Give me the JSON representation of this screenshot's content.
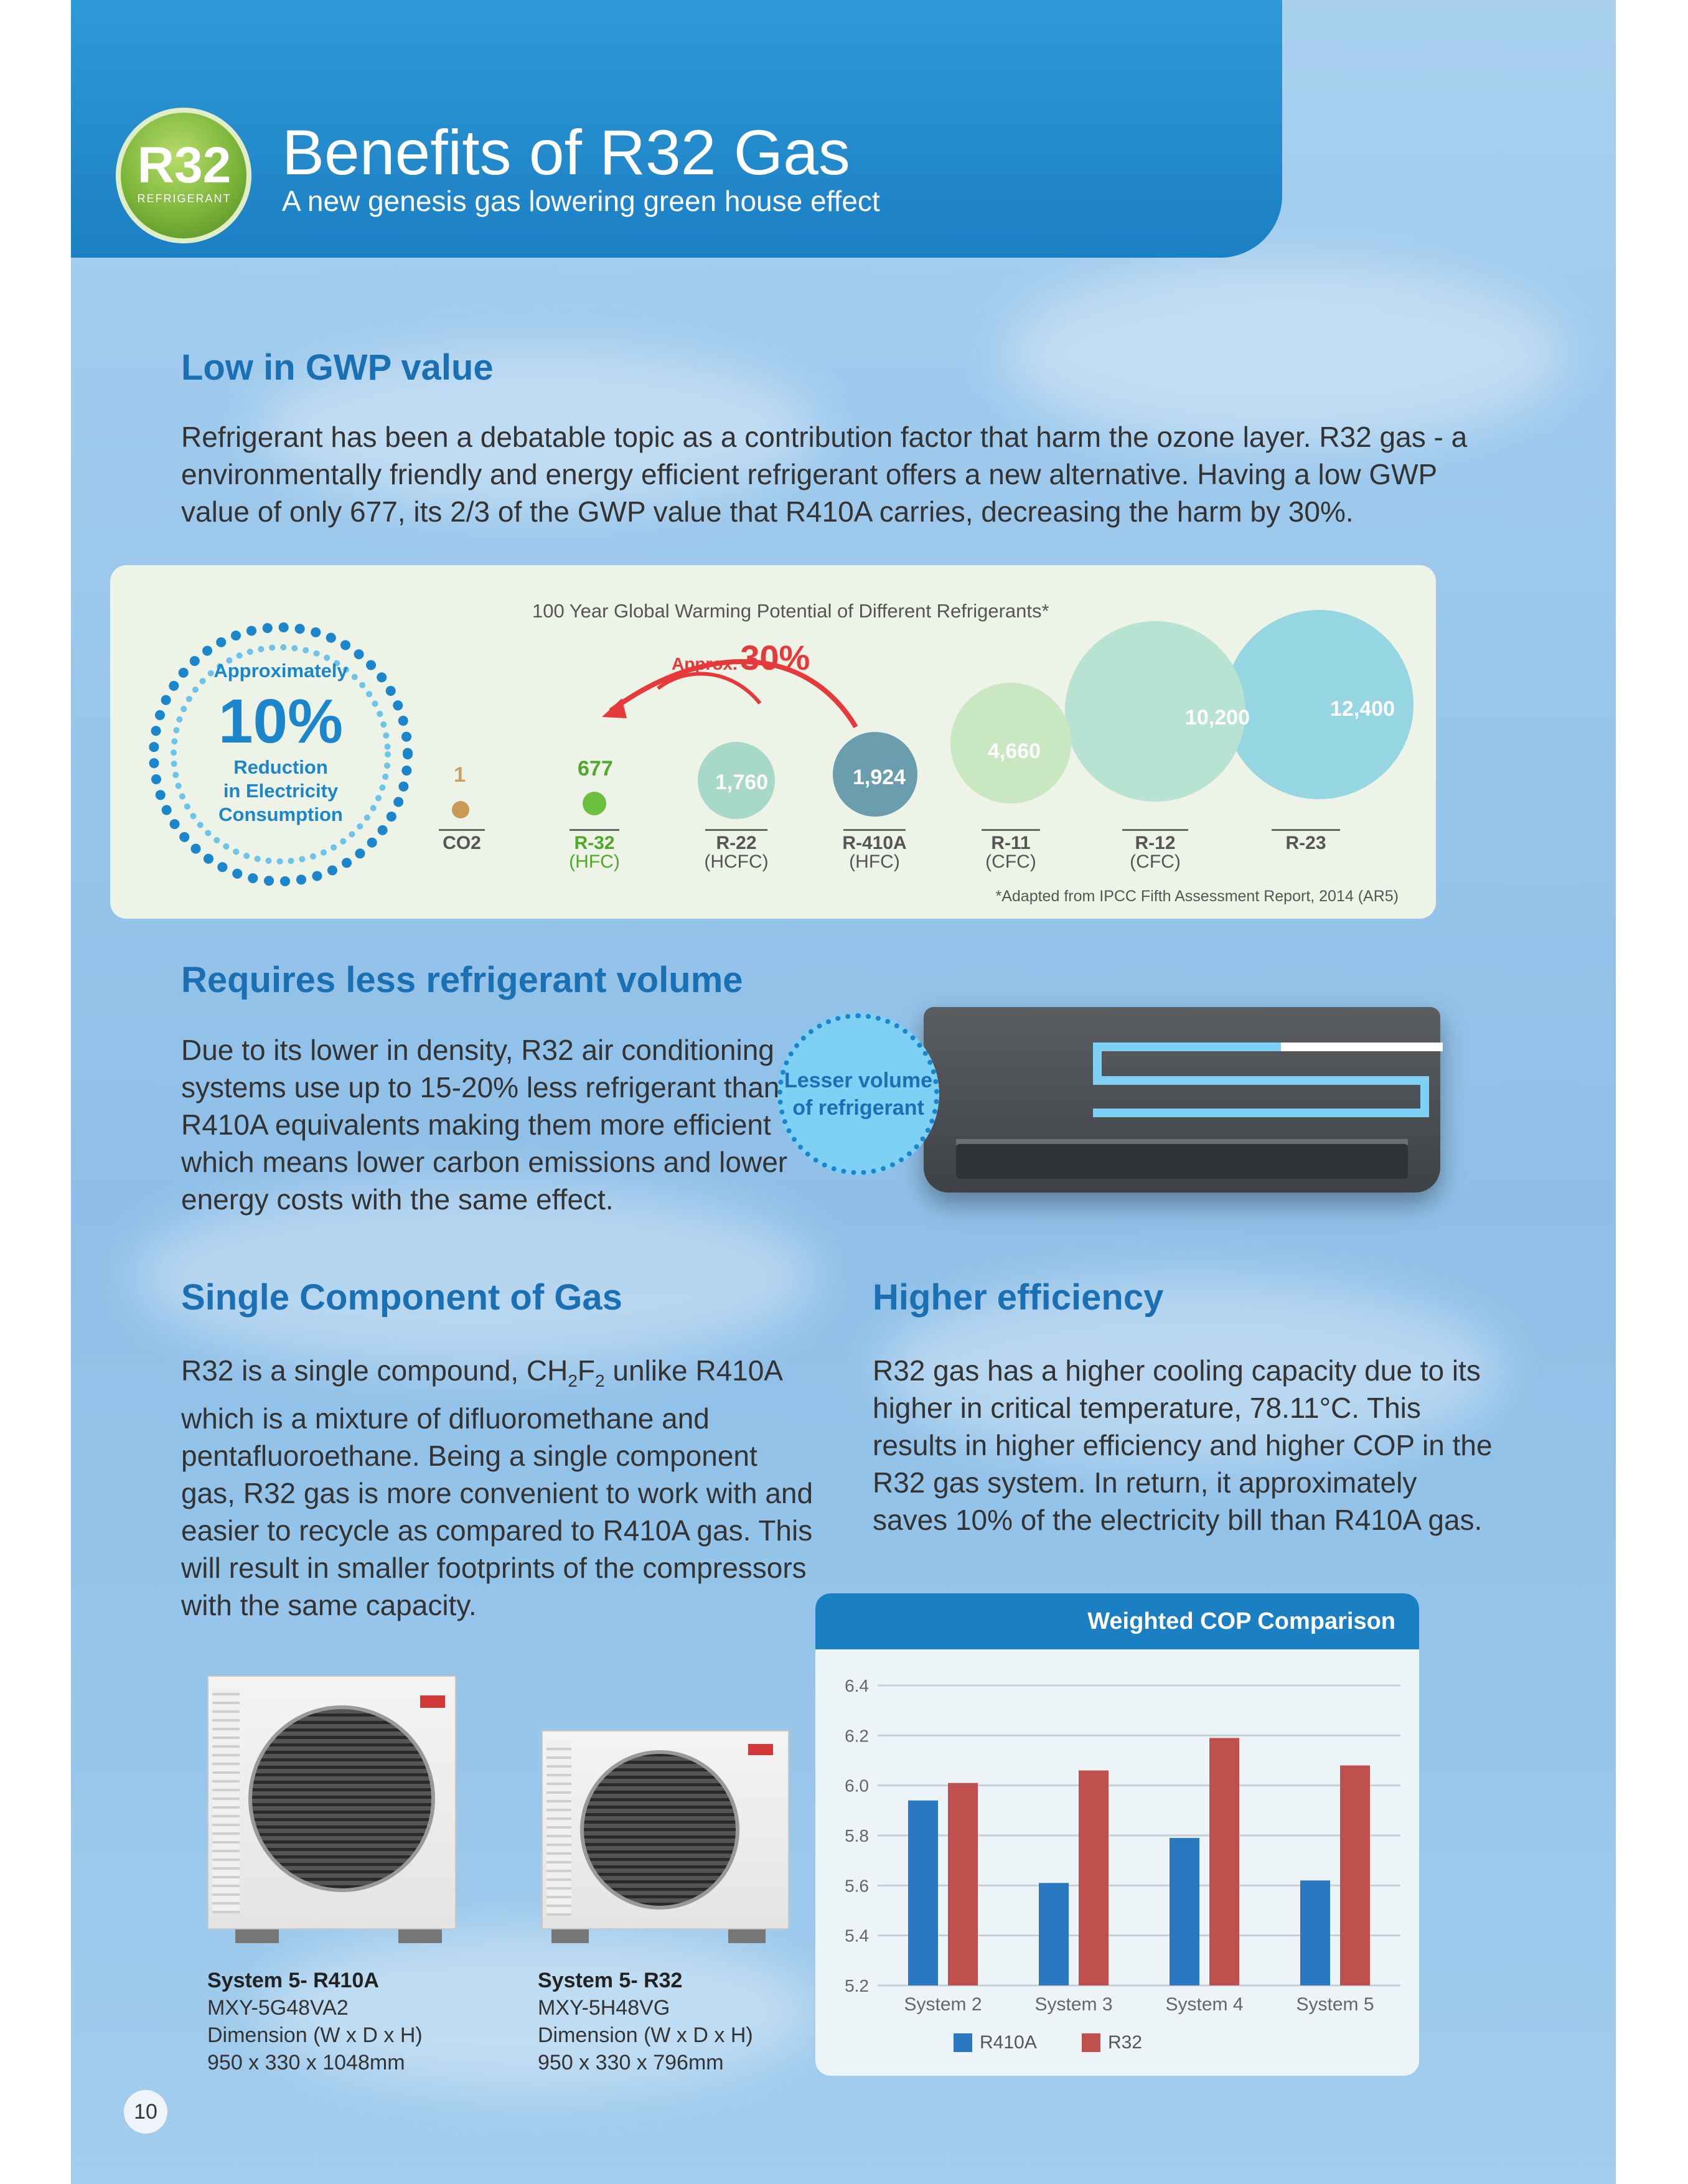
{
  "header": {
    "logo_text": "R32",
    "logo_subtext": "REFRIGERANT",
    "title": "Benefits of R32 Gas",
    "subtitle": "A new genesis gas lowering green house effect"
  },
  "section_gwp": {
    "heading": "Low in GWP value",
    "body": "Refrigerant has been a debatable topic as a contribution factor that harm the ozone layer. R32 gas - a environmentally friendly and energy efficient refrigerant offers a new alternative. Having a low GWP value of only 677, its 2/3 of the GWP value that R410A carries, decreasing the harm by 30%."
  },
  "badge_10": {
    "approximately": "Approximately",
    "value": "10%",
    "line1": "Reduction",
    "line2": "in Electricity",
    "line3": "Consumption"
  },
  "gwp_chart": {
    "title": "100 Year Global Warming Potential of Different Refrigerants*",
    "approx_label": "Approx.",
    "approx_value": "30%",
    "footnote": "*Adapted from IPCC Fifth Assessment Report, 2014 (AR5)",
    "colors": {
      "co2": "#c89a55",
      "r32": "#6cbf3f",
      "hcfc_hfc": "#a8d8c8",
      "r410a": "#6a9dae",
      "cfc_light": "#c9e8c2",
      "cfc_mid": "#b8e2d2",
      "r23": "#96d6e2",
      "arrow": "#e63a3a"
    }
  },
  "chart_data": [
    {
      "type": "bubble",
      "title": "100 Year Global Warming Potential of Different Refrigerants*",
      "categories": [
        "CO2",
        "R-32",
        "R-22",
        "R-410A",
        "R-11",
        "R-12",
        "R-23"
      ],
      "subcategories": [
        "",
        "(HFC)",
        "(HCFC)",
        "(HFC)",
        "(CFC)",
        "(CFC)",
        ""
      ],
      "values": [
        1,
        677,
        1760,
        1924,
        4660,
        10200,
        12400
      ],
      "value_labels": [
        "1",
        "677",
        "1,760",
        "1,924",
        "4,660",
        "10,200",
        "12,400"
      ],
      "annotation": "Approx. 30%"
    },
    {
      "type": "bar",
      "title": "Weighted COP Comparison",
      "categories": [
        "System 2",
        "System 3",
        "System 4",
        "System 5"
      ],
      "series": [
        {
          "name": "R410A",
          "color": "#2b78c2",
          "values": [
            5.94,
            5.61,
            5.79,
            5.62
          ]
        },
        {
          "name": "R32",
          "color": "#c0504d",
          "values": [
            6.01,
            6.06,
            6.19,
            6.08
          ]
        }
      ],
      "yticks": [
        "6.4",
        "6.2",
        "6.0",
        "5.8",
        "5.6",
        "5.4",
        "5.2"
      ],
      "ylim": [
        5.2,
        6.4
      ]
    }
  ],
  "section_volume": {
    "heading": "Requires less refrigerant volume",
    "body": "Due to its lower in density, R32 air conditioning systems use up to 15-20% less refrigerant than R410A equivalents making them more efficient which means lower carbon emissions and lower energy costs with the same effect.",
    "badge_line1": "Lesser volume",
    "badge_line2": "of refrigerant"
  },
  "section_single": {
    "heading": "Single Component of Gas",
    "body_prefix": "R32 is a single compound, CH",
    "sub1": "2",
    "body_mid": "F",
    "sub2": "2",
    "body_rest": " unlike R410A which is a mixture of difluoromethane and pentafluoroethane. Being a single component gas, R32 gas is more convenient to work with and easier to recycle as compared to R410A gas. This will result in smaller footprints of the compressors with the same capacity."
  },
  "section_efficiency": {
    "heading": "Higher efficiency",
    "body": "R32 gas has a higher cooling capacity due to its higher in critical temperature, 78.11°C. This results in higher efficiency and higher COP in the R32 gas system. In return, it approximately saves 10% of the electricity bill than R410A gas."
  },
  "systems": [
    {
      "name": "System 5- R410A",
      "model": "MXY-5G48VA2",
      "dim_label": "Dimension (W x D x H)",
      "dim": "950 x 330 x 1048mm"
    },
    {
      "name": "System 5- R32",
      "model": "MXY-5H48VG",
      "dim_label": "Dimension (W x D x H)",
      "dim": "950 x 330 x 796mm"
    }
  ],
  "page_number": "10"
}
